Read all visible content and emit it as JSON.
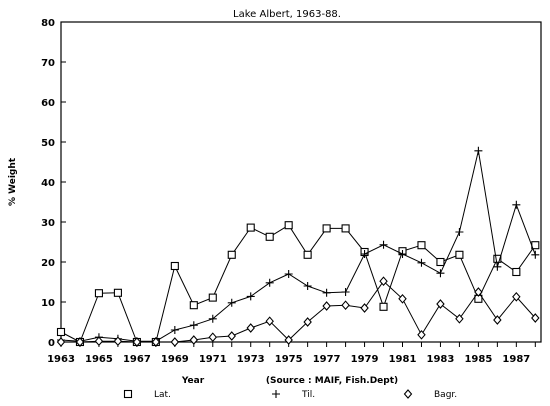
{
  "chart_data": {
    "type": "line",
    "title": "Lake Albert, 1963-88.",
    "xlabel": "Year",
    "ylabel": "% Weight",
    "source_note": "(Source : MAIF, Fish.Dept)",
    "xlim": [
      1963,
      1988.3
    ],
    "ylim": [
      0,
      80
    ],
    "x_ticks": [
      "1963",
      "1965",
      "1967",
      "1969",
      "1971",
      "1973",
      "1975",
      "1977",
      "1979",
      "1981",
      "1983",
      "1985",
      "1987"
    ],
    "y_ticks": [
      "0",
      "10",
      "20",
      "30",
      "40",
      "50",
      "60",
      "70",
      "80"
    ],
    "x_tick_values": [
      1963,
      1965,
      1967,
      1969,
      1971,
      1973,
      1975,
      1977,
      1979,
      1981,
      1983,
      1985,
      1987
    ],
    "y_tick_values": [
      0,
      10,
      20,
      30,
      40,
      50,
      60,
      70,
      80
    ],
    "grid": false,
    "legend_position": "bottom",
    "series": [
      {
        "name": "Lat.",
        "marker": "square",
        "x": [
          1963,
          1964,
          1965,
          1966,
          1967,
          1968,
          1969,
          1970,
          1971,
          1972,
          1973,
          1974,
          1975,
          1976,
          1977,
          1978,
          1979,
          1980,
          1981,
          1982,
          1983,
          1984,
          1985,
          1986,
          1987,
          1988
        ],
        "values": [
          2.5,
          0,
          12.2,
          12.3,
          0,
          0,
          19,
          9.2,
          11.1,
          21.8,
          28.6,
          26.3,
          29.2,
          21.8,
          28.4,
          28.4,
          22.5,
          8.8,
          22.7,
          24.2,
          20,
          21.8,
          10.8,
          20.8,
          17.5,
          24.2
        ]
      },
      {
        "name": "Til.",
        "marker": "plus",
        "x": [
          1963,
          1964,
          1965,
          1966,
          1967,
          1968,
          1969,
          1970,
          1971,
          1972,
          1973,
          1974,
          1975,
          1976,
          1977,
          1978,
          1979,
          1980,
          1981,
          1982,
          1983,
          1984,
          1985,
          1986,
          1987,
          1988
        ],
        "values": [
          0.5,
          0.2,
          1.2,
          0.8,
          0.2,
          0.2,
          3,
          4.2,
          5.8,
          9.8,
          11.4,
          14.8,
          17,
          14,
          12.3,
          12.5,
          22,
          24.3,
          22,
          19.8,
          17.2,
          27.5,
          47.8,
          18.8,
          34.3,
          21.8
        ]
      },
      {
        "name": "Bagr.",
        "marker": "diamond",
        "x": [
          1963,
          1964,
          1965,
          1966,
          1967,
          1968,
          1969,
          1970,
          1971,
          1972,
          1973,
          1974,
          1975,
          1976,
          1977,
          1978,
          1979,
          1980,
          1981,
          1982,
          1983,
          1984,
          1985,
          1986,
          1987,
          1988
        ],
        "values": [
          0,
          0,
          0.2,
          0.2,
          0,
          0,
          0,
          0.5,
          1.2,
          1.5,
          3.5,
          5.2,
          0.5,
          5,
          9,
          9.2,
          8.5,
          15.2,
          10.8,
          1.8,
          9.5,
          5.8,
          12.5,
          5.5,
          11.3,
          6
        ]
      }
    ]
  }
}
